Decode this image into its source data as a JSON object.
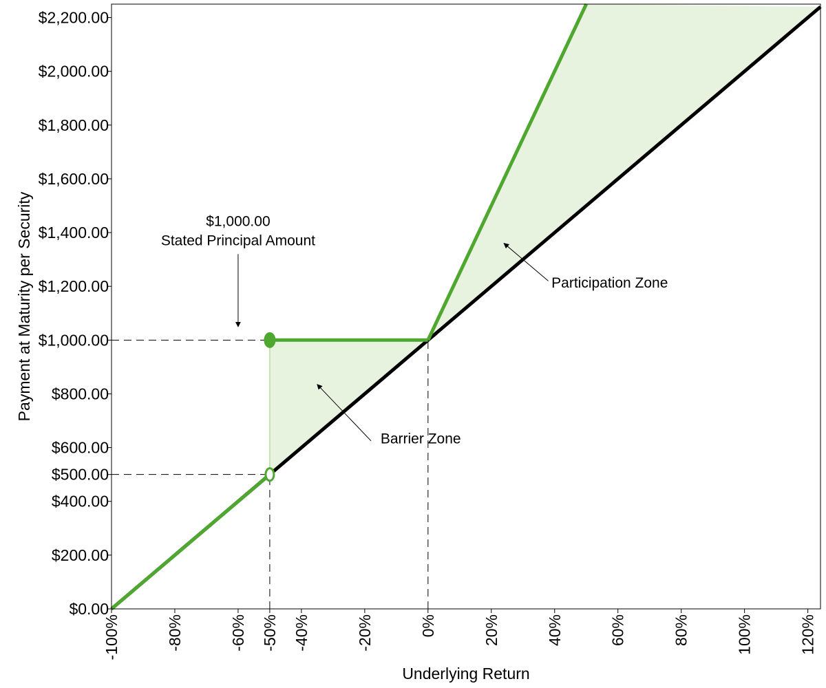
{
  "chart_data": {
    "type": "line",
    "title": "",
    "xlabel": "Underlying Return",
    "ylabel": "Payment at Maturity per Security",
    "xlim": [
      -100,
      124
    ],
    "ylim": [
      0,
      2250
    ],
    "x_ticks": [
      -100,
      -80,
      -60,
      -50,
      -40,
      -20,
      0,
      20,
      40,
      60,
      80,
      100,
      120
    ],
    "x_tick_labels": [
      "-100%",
      "-80%",
      "-60%",
      "-50%",
      "-40%",
      "-20%",
      "0%",
      "20%",
      "40%",
      "60%",
      "80%",
      "100%",
      "120%"
    ],
    "y_ticks": [
      0,
      200,
      400,
      500,
      600,
      800,
      1000,
      1200,
      1400,
      1600,
      1800,
      2000,
      2200
    ],
    "y_tick_labels": [
      "$0.00",
      "$200.00",
      "$400.00",
      "$500.00",
      "$600.00",
      "$800.00",
      "$1,000.00",
      "$1,200.00",
      "$1,400.00",
      "$1,600.00",
      "$1,800.00",
      "$2,000.00",
      "$2,200.00"
    ],
    "grid": false,
    "series": [
      {
        "color": "#000000",
        "x": [
          -100,
          124
        ],
        "y": [
          0,
          2240
        ]
      },
      {
        "color": "#4ea72e",
        "segments": [
          {
            "x": [
              -100,
              -50
            ],
            "y": [
              0,
              500
            ]
          },
          {
            "x": [
              -50,
              0
            ],
            "y": [
              1000,
              1000
            ]
          },
          {
            "x": [
              0,
              50
            ],
            "y": [
              1000,
              2250
            ]
          }
        ]
      }
    ],
    "markers": [
      {
        "type": "filled",
        "x": -50,
        "y": 1000,
        "color": "#4ea72e"
      },
      {
        "type": "open",
        "x": -50,
        "y": 500,
        "color": "#4ea72e"
      }
    ],
    "shaded_regions": [
      {
        "color": "#e8f3df",
        "points": [
          [
            -50,
            500
          ],
          [
            -50,
            1000
          ],
          [
            0,
            1000
          ]
        ]
      },
      {
        "color": "#e8f3df",
        "points": [
          [
            0,
            1000
          ],
          [
            50,
            2250
          ],
          [
            124,
            2240
          ]
        ]
      }
    ],
    "reference_lines": [
      {
        "x": [
          -100,
          -50
        ],
        "y": [
          1000,
          1000
        ]
      },
      {
        "x": [
          -100,
          -50
        ],
        "y": [
          500,
          500
        ]
      },
      {
        "x": [
          -50,
          -50
        ],
        "y": [
          0,
          500
        ]
      },
      {
        "x": [
          0,
          0
        ],
        "y": [
          0,
          1000
        ]
      }
    ],
    "annotations": [
      {
        "lines": [
          "$1,000.00",
          "Stated Principal Amount"
        ],
        "text_x": -60,
        "text_y": 1425,
        "arrow_from": [
          -60,
          1320
        ],
        "arrow_to": [
          -60,
          1050
        ]
      },
      {
        "lines": [
          "Barrier Zone"
        ],
        "text_x": -15,
        "text_y": 615,
        "arrow_from": [
          -18,
          625
        ],
        "arrow_to": [
          -35,
          835
        ]
      },
      {
        "lines": [
          "Participation Zone"
        ],
        "text_x": 39,
        "text_y": 1195,
        "arrow_from": [
          38,
          1220
        ],
        "arrow_to": [
          24,
          1360
        ]
      }
    ]
  }
}
